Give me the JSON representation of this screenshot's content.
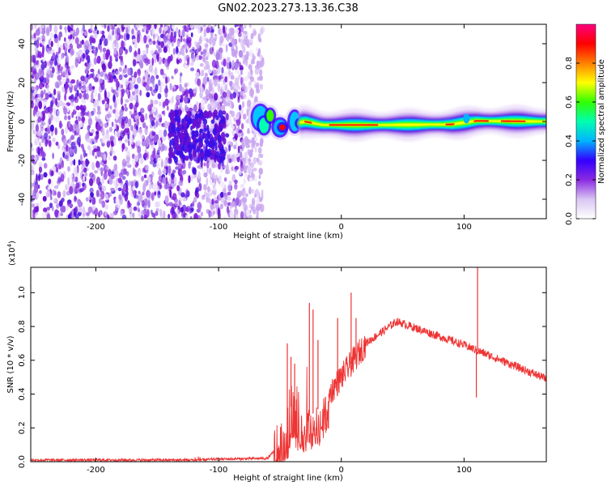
{
  "figure": {
    "title": "GN02.2023.273.13.36.C38"
  },
  "chart_data": [
    {
      "type": "heatmap",
      "title": "GN02.2023.273.13.36.C38",
      "xlabel": "Height of straight line (km)",
      "ylabel": "Frequency (Hz)",
      "xlim": [
        -253,
        167
      ],
      "ylim": [
        -50,
        50
      ],
      "x_ticks": [
        -200,
        -100,
        0,
        100
      ],
      "y_ticks": [
        -40,
        -20,
        0,
        20,
        40
      ],
      "colorbar": {
        "label": "Normalized spectral amplitude",
        "range": [
          0.0,
          1.0
        ],
        "ticks": [
          0.0,
          0.2,
          0.4,
          0.6,
          0.8
        ],
        "colors": [
          "#ffffff",
          "#d9c6f3",
          "#8a2be2",
          "#3300ff",
          "#00b4ff",
          "#00ffb0",
          "#30ff00",
          "#ffff00",
          "#ff8000",
          "#ff0000",
          "#ff0080"
        ]
      },
      "regions": [
        {
          "name": "noise",
          "x_range": [
            -253,
            -70
          ],
          "freq_range": [
            -50,
            50
          ],
          "amplitude": 0.12
        },
        {
          "name": "cluster",
          "x_range": [
            -140,
            -95
          ],
          "freq_range": [
            -20,
            5
          ],
          "amplitude": 0.2
        },
        {
          "name": "transition",
          "x_range": [
            -70,
            -30
          ],
          "freq_range": [
            -12,
            8
          ],
          "amplitude": 0.6
        },
        {
          "name": "carrier",
          "x_range": [
            -30,
            167
          ],
          "freq_range": [
            -3,
            2
          ],
          "amplitude": 0.9
        }
      ],
      "carrier_center_hz": [
        {
          "x": -68,
          "f": 2.0
        },
        {
          "x": -50,
          "f": -3.0
        },
        {
          "x": -30,
          "f": 0.0
        },
        {
          "x": -15,
          "f": -1.8
        },
        {
          "x": 30,
          "f": -1.8
        },
        {
          "x": 90,
          "f": -1.5
        },
        {
          "x": 110,
          "f": 0.3
        },
        {
          "x": 167,
          "f": 0.0
        }
      ]
    },
    {
      "type": "line",
      "xlabel": "Height of straight line (km)",
      "ylabel": "SNR (10 * v/v)",
      "y_multiplier": "(x10",
      "y_multiplier_exp": "4",
      "y_multiplier_close": ")",
      "xlim": [
        -253,
        167
      ],
      "ylim": [
        0.0,
        1.15
      ],
      "x_ticks": [
        -200,
        -100,
        0,
        100
      ],
      "y_ticks": [
        0.0,
        0.2,
        0.4,
        0.6,
        0.8,
        1.0
      ],
      "color": "#ee3333",
      "envelope": [
        {
          "x": -253,
          "y": 0.01
        },
        {
          "x": -120,
          "y": 0.01
        },
        {
          "x": -100,
          "y": 0.015
        },
        {
          "x": -60,
          "y": 0.02
        },
        {
          "x": -50,
          "y": 0.1
        },
        {
          "x": -40,
          "y": 0.35
        },
        {
          "x": -30,
          "y": 0.25
        },
        {
          "x": -20,
          "y": 0.3
        },
        {
          "x": 0,
          "y": 0.5
        },
        {
          "x": 20,
          "y": 0.7
        },
        {
          "x": 45,
          "y": 0.83
        },
        {
          "x": 100,
          "y": 0.69
        },
        {
          "x": 110,
          "y": 0.66
        },
        {
          "x": 167,
          "y": 0.49
        }
      ],
      "spikes": [
        {
          "x": -44,
          "y": 0.7
        },
        {
          "x": -41,
          "y": 0.62
        },
        {
          "x": -38,
          "y": 0.58
        },
        {
          "x": -26,
          "y": 0.94
        },
        {
          "x": -23,
          "y": 0.9
        },
        {
          "x": -19,
          "y": 0.72
        },
        {
          "x": -3,
          "y": 0.85
        },
        {
          "x": 8,
          "y": 1.0
        },
        {
          "x": 12,
          "y": 0.85
        },
        {
          "x": 111,
          "y": 1.15
        },
        {
          "x": 110,
          "y": 0.38
        }
      ]
    }
  ]
}
